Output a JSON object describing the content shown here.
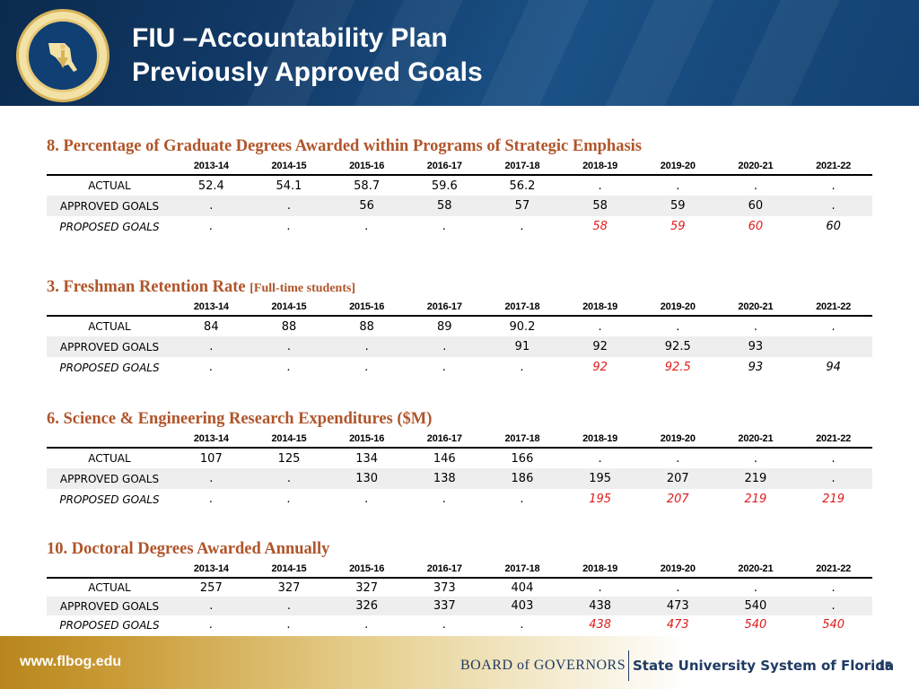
{
  "header": {
    "title_line1": "FIU –Accountability Plan",
    "title_line2": "Previously Approved Goals",
    "seal_text": "STATE UNIVERSITY SYSTEM OF FLORIDA • BOARD OF GOVERNORS"
  },
  "years": [
    "2013-14",
    "2014-15",
    "2015-16",
    "2016-17",
    "2017-18",
    "2018-19",
    "2019-20",
    "2020-21",
    "2021-22"
  ],
  "sections": [
    {
      "title": "8. Percentage of Graduate Degrees Awarded within Programs of Strategic Emphasis",
      "subtitle": "",
      "rows": [
        {
          "label": "ACTUAL",
          "values": [
            "52.4",
            "54.1",
            "58.7",
            "59.6",
            "56.2",
            ".",
            ".",
            ".",
            "."
          ]
        },
        {
          "label": "APPROVED GOALS",
          "values": [
            ".",
            ".",
            "56",
            "58",
            "57",
            "58",
            "59",
            "60",
            "."
          ]
        },
        {
          "label": "PROPOSED GOALS",
          "values": [
            ".",
            ".",
            ".",
            ".",
            ".",
            "58",
            "59",
            "60",
            "60"
          ]
        }
      ]
    },
    {
      "title": "3. Freshman Retention Rate",
      "subtitle": "[Full-time students]",
      "rows": [
        {
          "label": "ACTUAL",
          "values": [
            "84",
            "88",
            "88",
            "89",
            "90.2",
            ".",
            ".",
            ".",
            "."
          ]
        },
        {
          "label": "APPROVED GOALS",
          "values": [
            ".",
            ".",
            ".",
            ".",
            "91",
            "92",
            "92.5",
            "93",
            ""
          ]
        },
        {
          "label": "PROPOSED GOALS",
          "values": [
            ".",
            ".",
            ".",
            ".",
            ".",
            "92",
            "92.5",
            "93",
            "94"
          ]
        }
      ]
    },
    {
      "title": "6. Science & Engineering Research Expenditures ($M)",
      "subtitle": "",
      "rows": [
        {
          "label": "ACTUAL",
          "values": [
            "107",
            "125",
            "134",
            "146",
            "166",
            ".",
            ".",
            ".",
            "."
          ]
        },
        {
          "label": "APPROVED GOALS",
          "values": [
            ".",
            ".",
            "130",
            "138",
            "186",
            "195",
            "207",
            "219",
            "."
          ]
        },
        {
          "label": "PROPOSED GOALS",
          "values": [
            ".",
            ".",
            ".",
            ".",
            ".",
            "195",
            "207",
            "219",
            "219"
          ]
        }
      ]
    },
    {
      "title": "10. Doctoral Degrees Awarded Annually",
      "subtitle": "",
      "rows": [
        {
          "label": "ACTUAL",
          "values": [
            "257",
            "327",
            "327",
            "373",
            "404",
            ".",
            ".",
            ".",
            "."
          ]
        },
        {
          "label": "APPROVED GOALS",
          "values": [
            ".",
            ".",
            "326",
            "337",
            "403",
            "438",
            "473",
            "540",
            "."
          ]
        },
        {
          "label": "PROPOSED GOALS",
          "values": [
            ".",
            ".",
            ".",
            ".",
            ".",
            "438",
            "473",
            "540",
            "540"
          ]
        }
      ]
    }
  ],
  "styles": {
    "title_color": "#b0552a",
    "proposed_highlight_color": "#e11b1b",
    "header_blue": "#133e6d"
  },
  "footer": {
    "url": "www.flbog.edu",
    "org_name": "BOARD of GOVERNORS",
    "org_sub": "State University System of Florida",
    "page_number": "15"
  }
}
